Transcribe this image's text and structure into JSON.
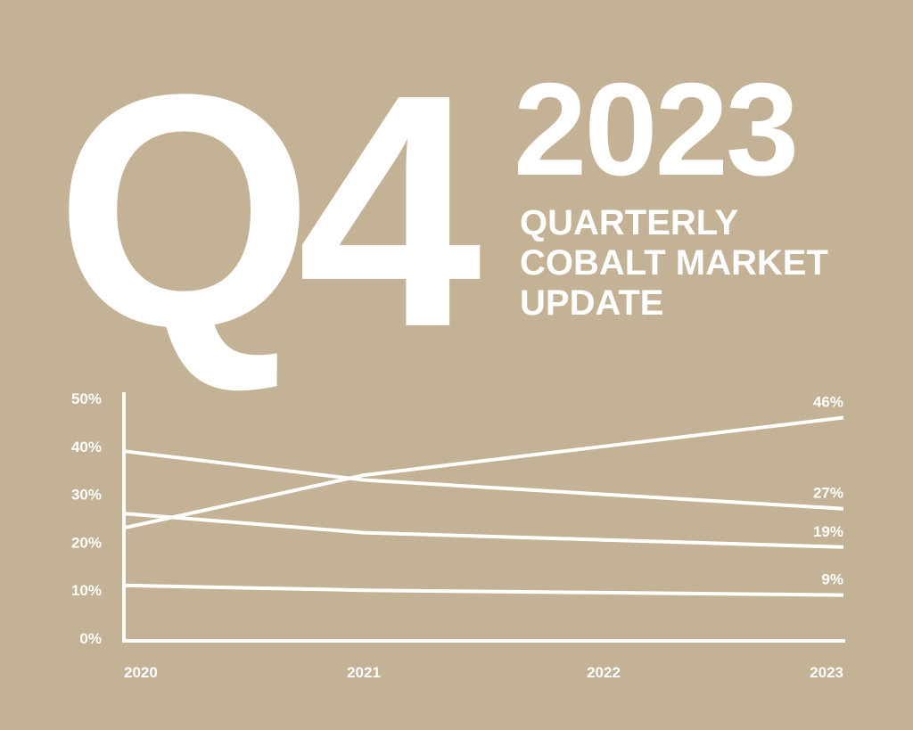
{
  "header": {
    "quarter": "Q4",
    "year": "2023",
    "subtitle_lines": [
      "QUARTERLY",
      "COBALT MARKET",
      "UPDATE"
    ]
  },
  "colors": {
    "background": "#c3b295",
    "foreground": "#ffffff"
  },
  "chart_data": {
    "type": "line",
    "title": "",
    "xlabel": "",
    "ylabel": "",
    "x": [
      "2020",
      "2021",
      "2022",
      "2023"
    ],
    "ylim": [
      0,
      50
    ],
    "yticks": [
      "0%",
      "10%",
      "20%",
      "30%",
      "40%",
      "50%"
    ],
    "grid": false,
    "series": [
      {
        "values": [
          23,
          34,
          40,
          46
        ],
        "end_label": "46%"
      },
      {
        "values": [
          39,
          33,
          30,
          27
        ],
        "end_label": "27%"
      },
      {
        "values": [
          26,
          22,
          20.5,
          19
        ],
        "end_label": "19%"
      },
      {
        "values": [
          11,
          10,
          9.5,
          9
        ],
        "end_label": "9%"
      }
    ]
  }
}
